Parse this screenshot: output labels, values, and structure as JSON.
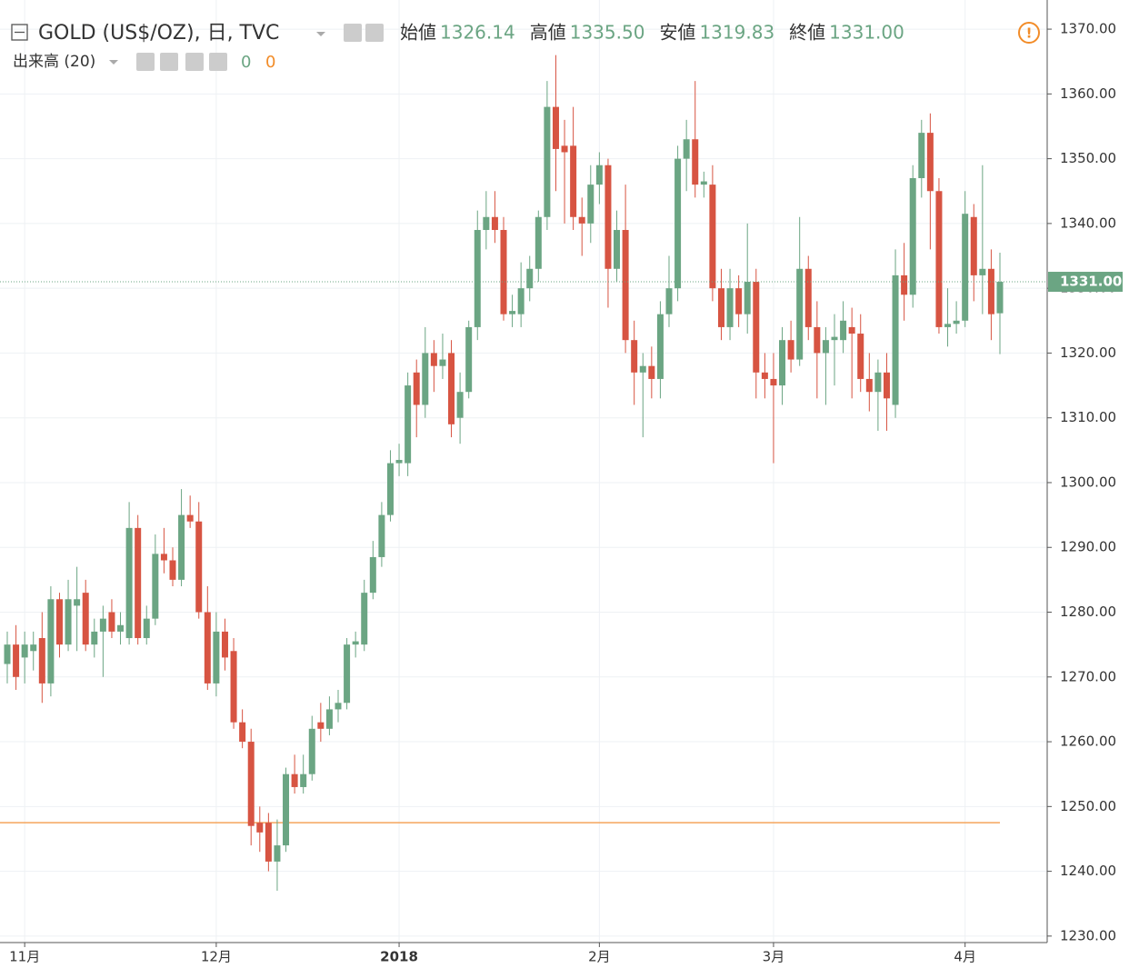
{
  "chart_data": {
    "type": "candlestick",
    "title": "GOLD (US$/OZ), 日, TVC",
    "ohlc_legend": [
      {
        "label": "始値",
        "value": "1326.14"
      },
      {
        "label": "高値",
        "value": "1335.50"
      },
      {
        "label": "安値",
        "value": "1319.83"
      },
      {
        "label": "終値",
        "value": "1331.00"
      }
    ],
    "volume_legend": {
      "label": "出来高 (20)",
      "values": [
        "0",
        "0"
      ]
    },
    "up_color": "#6ba583",
    "down_color": "#d75442",
    "volume_line_color": "#f5a55b",
    "volume_line_level": 1247.5,
    "grid": true,
    "ylim": [
      1229,
      1374.5
    ],
    "yticks": [
      {
        "value": 1230,
        "label": "1230.00"
      },
      {
        "value": 1240,
        "label": "1240.00"
      },
      {
        "value": 1250,
        "label": "1250.00"
      },
      {
        "value": 1260,
        "label": "1260.00"
      },
      {
        "value": 1270,
        "label": "1270.00"
      },
      {
        "value": 1280,
        "label": "1280.00"
      },
      {
        "value": 1290,
        "label": "1290.00"
      },
      {
        "value": 1300,
        "label": "1300.00"
      },
      {
        "value": 1310,
        "label": "1310.00"
      },
      {
        "value": 1320,
        "label": "1320.00"
      },
      {
        "value": 1330,
        "label": "1330.00"
      },
      {
        "value": 1340,
        "label": "1340.00"
      },
      {
        "value": 1350,
        "label": "1350.00"
      },
      {
        "value": 1360,
        "label": "1360.00"
      },
      {
        "value": 1370,
        "label": "1370.00"
      }
    ],
    "categories": [
      null,
      null,
      "11月",
      null,
      null,
      null,
      null,
      null,
      null,
      null,
      null,
      null,
      null,
      null,
      null,
      null,
      null,
      null,
      null,
      null,
      null,
      null,
      null,
      null,
      "12月",
      null,
      null,
      null,
      null,
      null,
      null,
      null,
      null,
      null,
      null,
      null,
      null,
      null,
      null,
      null,
      null,
      null,
      null,
      null,
      null,
      "2018",
      null,
      null,
      null,
      null,
      null,
      null,
      null,
      null,
      null,
      null,
      null,
      null,
      null,
      null,
      null,
      null,
      null,
      null,
      null,
      null,
      null,
      null,
      "2月",
      null,
      null,
      null,
      null,
      null,
      null,
      null,
      null,
      null,
      null,
      null,
      null,
      null,
      null,
      null,
      null,
      null,
      null,
      null,
      "3月",
      null,
      null,
      null,
      null,
      null,
      null,
      null,
      null,
      null,
      null,
      null,
      null,
      null,
      null,
      null,
      null,
      null,
      null,
      null,
      null,
      null,
      "4月",
      null,
      null,
      null,
      null
    ],
    "open": [
      1272,
      1275,
      1273,
      1274,
      1276,
      1269,
      1282,
      1275,
      1281,
      1283,
      1275,
      1277,
      1280,
      1277,
      1276,
      1293,
      1276,
      1279,
      1289,
      1288,
      1285,
      1295,
      1294,
      1280,
      1269,
      1277,
      1274,
      1263,
      1260,
      1247.5,
      1247.5,
      1241.5,
      1244,
      1255,
      1253,
      1255,
      1263,
      1262,
      1265,
      1266,
      1275,
      1275,
      1283,
      1288.5,
      1295,
      1303,
      1303,
      1317,
      1312,
      1320,
      1318,
      1320,
      1310,
      1314,
      1324,
      1339,
      1341,
      1339,
      1326,
      1326,
      1330,
      1333,
      1341,
      1358,
      1352,
      1352,
      1341,
      1340,
      1346,
      1349,
      1333,
      1339,
      1322,
      1317,
      1318,
      1316,
      1326,
      1330,
      1350,
      1353,
      1346,
      1346,
      1330,
      1324,
      1330,
      1326,
      1331,
      1317,
      1316,
      1315,
      1322,
      1319,
      1333,
      1324,
      1320,
      1322,
      1322,
      1324,
      1323,
      1316,
      1314,
      1317,
      1312,
      1332,
      1329,
      1347,
      1354,
      1345,
      1324,
      1324.5,
      1325,
      1341,
      1332,
      1333,
      1326.14
    ],
    "high": [
      1277,
      1278,
      1277,
      1277,
      1280,
      1284,
      1283,
      1285,
      1287,
      1285,
      1279,
      1281,
      1282,
      1280,
      1297,
      1295,
      1281,
      1292,
      1293,
      1290,
      1299,
      1298,
      1297,
      1284,
      1280,
      1279,
      1276,
      1265,
      1262,
      1250,
      1249,
      1248,
      1256,
      1258,
      1258,
      1264,
      1266,
      1267,
      1268,
      1276,
      1277,
      1285,
      1291,
      1297,
      1305,
      1306,
      1317,
      1319,
      1324,
      1322,
      1323,
      1322,
      1317,
      1325,
      1342,
      1345,
      1345,
      1341,
      1329,
      1334,
      1335,
      1342,
      1362,
      1366,
      1356,
      1358,
      1344,
      1349,
      1351,
      1350,
      1342,
      1346,
      1325,
      1320,
      1321,
      1328,
      1335,
      1352,
      1356,
      1362,
      1348,
      1349,
      1333,
      1333,
      1332,
      1340,
      1333,
      1320,
      1320,
      1324,
      1325,
      1341,
      1335,
      1328,
      1324,
      1326,
      1328,
      1327,
      1326,
      1320,
      1319,
      1320,
      1336,
      1337,
      1349,
      1356,
      1357,
      1347,
      1330,
      1328,
      1345,
      1343,
      1349,
      1336,
      1335.5
    ],
    "low": [
      1269,
      1268,
      1269,
      1271,
      1266,
      1267,
      1273,
      1274,
      1274,
      1274,
      1273,
      1270,
      1276,
      1275,
      1275,
      1275,
      1275,
      1278,
      1286,
      1284,
      1284,
      1293,
      1279,
      1268,
      1267,
      1271,
      1262,
      1259,
      1244,
      1243,
      1240,
      1237,
      1243,
      1252,
      1252,
      1254,
      1260,
      1261,
      1263,
      1265,
      1273,
      1274,
      1282,
      1287,
      1294,
      1301,
      1301,
      1307,
      1310,
      1314,
      1316,
      1307,
      1306,
      1313,
      1322,
      1336,
      1337,
      1325,
      1324,
      1324,
      1328,
      1331,
      1339,
      1345,
      1340,
      1339,
      1335,
      1337,
      1343,
      1327,
      1331,
      1320,
      1312,
      1307,
      1313,
      1313,
      1324,
      1328,
      1345,
      1344,
      1344,
      1328,
      1322,
      1322,
      1324,
      1323,
      1313,
      1313,
      1303,
      1312,
      1317,
      1318,
      1322,
      1313,
      1312,
      1315,
      1320,
      1313,
      1314,
      1311,
      1308,
      1308,
      1310,
      1325,
      1327,
      1344,
      1336,
      1323,
      1321,
      1323,
      1324,
      1328,
      1326,
      1322,
      1319.83
    ],
    "close": [
      1275,
      1270,
      1275,
      1275,
      1269,
      1282,
      1275,
      1282,
      1282,
      1275,
      1277,
      1279,
      1277,
      1278,
      1293,
      1276,
      1279,
      1289,
      1288,
      1285,
      1295,
      1294,
      1280,
      1269,
      1277,
      1273,
      1263,
      1260,
      1247,
      1246,
      1241.5,
      1244,
      1255,
      1253,
      1255,
      1262,
      1262,
      1265,
      1266,
      1275,
      1275.5,
      1283,
      1288.5,
      1295,
      1303,
      1303.5,
      1315,
      1312,
      1320,
      1318,
      1319,
      1309,
      1314,
      1324,
      1339,
      1341,
      1339,
      1326,
      1326.5,
      1330,
      1333,
      1341,
      1358,
      1351.5,
      1351,
      1341,
      1340,
      1346,
      1349,
      1333,
      1339,
      1322,
      1317,
      1318,
      1316,
      1326,
      1330,
      1350,
      1353,
      1346,
      1346.5,
      1330,
      1324,
      1330,
      1326,
      1331,
      1317,
      1316,
      1315,
      1322,
      1319,
      1333,
      1324,
      1320,
      1322,
      1322.5,
      1325,
      1323,
      1316,
      1314,
      1317,
      1313,
      1332,
      1329,
      1347,
      1354,
      1345,
      1324,
      1324.5,
      1325,
      1341.5,
      1332,
      1333,
      1326,
      1331
    ]
  }
}
